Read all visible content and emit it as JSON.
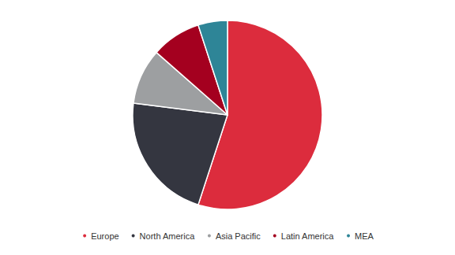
{
  "chart_data": {
    "type": "pie",
    "categories": [
      "Europe",
      "North America",
      "Asia Pacific",
      "Latin America",
      "MEA"
    ],
    "values": [
      55,
      22,
      9.5,
      8.5,
      5
    ],
    "colors": [
      "#dc2c3d",
      "#343640",
      "#9d9fa1",
      "#a4001f",
      "#2e8597"
    ],
    "legend": "bottom"
  }
}
